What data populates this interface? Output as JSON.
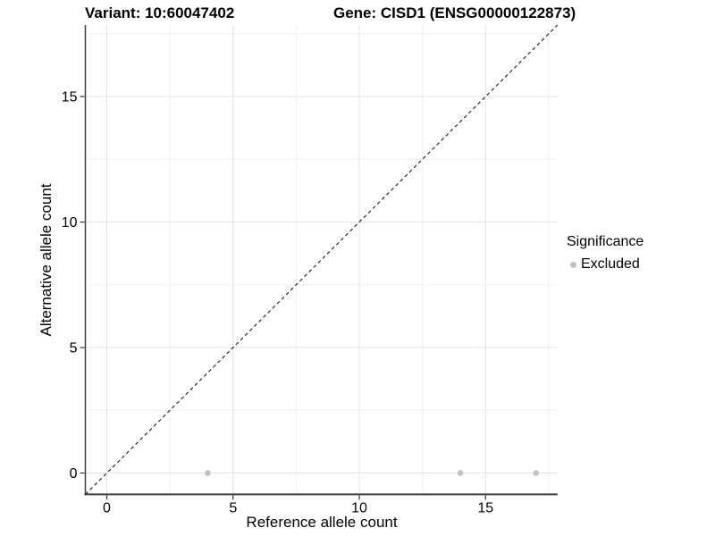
{
  "colors": {
    "background": "#ffffff",
    "grid_major": "#e3e3e3",
    "grid_minor": "#f0f0f0",
    "axis_line": "#3f3f3f",
    "tick_mark": "#333333",
    "text": "#000000",
    "point": "#c2c2c2",
    "dashed_line": "#1a1a1a"
  },
  "chart_data": {
    "type": "scatter",
    "titles": {
      "left": "Variant: 10:60047402",
      "right": "Gene: CISD1 (ENSG00000122873)"
    },
    "xlabel": "Reference allele count",
    "ylabel": "Alternative allele count",
    "xlim": [
      -0.85,
      17.85
    ],
    "ylim": [
      -0.85,
      17.85
    ],
    "x_ticks": [
      0,
      5,
      10,
      15
    ],
    "y_ticks": [
      0,
      5,
      10,
      15
    ],
    "x_minor_ticks": [
      2.5,
      7.5,
      12.5,
      17.5
    ],
    "y_minor_ticks": [
      2.5,
      7.5,
      12.5,
      17.5
    ],
    "grid": "major+minor",
    "reference_line": {
      "type": "abline",
      "slope": 1,
      "intercept": 0,
      "style": "dashed",
      "color": "#1a1a1a"
    },
    "series": [
      {
        "name": "Excluded",
        "color": "#c2c2c2",
        "marker": "circle",
        "points": [
          {
            "x": 4,
            "y": 0
          },
          {
            "x": 14,
            "y": 0
          },
          {
            "x": 17,
            "y": 0
          }
        ]
      }
    ],
    "legend": {
      "title": "Significance",
      "position": "right",
      "items": [
        {
          "label": "Excluded",
          "color": "#c2c2c2",
          "marker": "circle"
        }
      ]
    }
  }
}
